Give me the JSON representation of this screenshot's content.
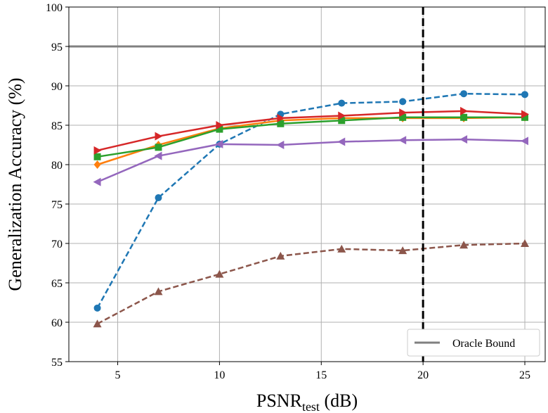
{
  "chart_data": {
    "type": "line",
    "title": "",
    "xlabel": {
      "main": "PSNR",
      "subscript": "test",
      "unit": " (dB)"
    },
    "ylabel": "Generalization Accuracy (%)",
    "xlim": [
      2.6,
      26.0
    ],
    "ylim": [
      55,
      100
    ],
    "xticks": [
      5,
      10,
      15,
      20,
      25
    ],
    "yticks": [
      55,
      60,
      65,
      70,
      75,
      80,
      85,
      90,
      95,
      100
    ],
    "grid": true,
    "x": [
      4,
      7,
      10,
      13,
      16,
      19,
      22,
      25
    ],
    "series": [
      {
        "name": "series-blue-dashed",
        "color": "#1f77b4",
        "dashed": true,
        "marker": "circle",
        "values": [
          61.8,
          75.8,
          82.6,
          86.4,
          87.8,
          88.0,
          89.0,
          88.9
        ]
      },
      {
        "name": "series-brown-dashed",
        "color": "#8c564b",
        "dashed": true,
        "marker": "triangle-up",
        "values": [
          59.8,
          63.9,
          66.1,
          68.4,
          69.3,
          69.1,
          69.8,
          70.0
        ]
      },
      {
        "name": "series-purple",
        "color": "#9467bd",
        "dashed": false,
        "marker": "triangle-left",
        "values": [
          77.8,
          81.1,
          82.6,
          82.5,
          82.9,
          83.1,
          83.2,
          83.0
        ]
      },
      {
        "name": "series-orange",
        "color": "#ff7f0e",
        "dashed": false,
        "marker": "diamond",
        "values": [
          80.0,
          82.5,
          84.6,
          85.6,
          85.9,
          85.9,
          85.9,
          86.0
        ]
      },
      {
        "name": "series-green",
        "color": "#2ca02c",
        "dashed": false,
        "marker": "square",
        "values": [
          81.0,
          82.2,
          84.5,
          85.2,
          85.6,
          86.0,
          86.0,
          86.0
        ]
      },
      {
        "name": "series-red",
        "color": "#d62728",
        "dashed": false,
        "marker": "triangle-right",
        "values": [
          81.8,
          83.6,
          85.0,
          85.9,
          86.2,
          86.6,
          86.8,
          86.4
        ]
      }
    ],
    "oracle_bound": {
      "label": "Oracle Bound",
      "value": 95,
      "color": "#808080"
    },
    "vertical_line": {
      "x": 20,
      "color": "#000000",
      "style": "dashed"
    },
    "legend_location": "lower-right"
  }
}
